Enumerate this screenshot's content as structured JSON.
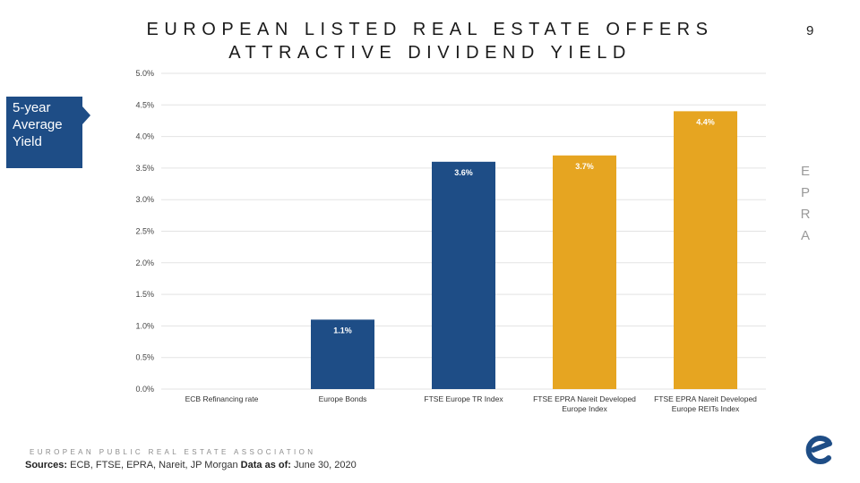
{
  "header": {
    "title_line1": "EUROPEAN LISTED REAL ESTATE OFFERS",
    "title_line2": "ATTRACTIVE DIVIDEND YIELD",
    "page_number": "9"
  },
  "callout": {
    "line1": "5-year",
    "line2": "Average",
    "line3": "Yield",
    "color": "#1e4d86"
  },
  "side_text": {
    "letters": [
      "E",
      "P",
      "R",
      "A"
    ]
  },
  "footer": {
    "association": "EUROPEAN PUBLIC REAL ESTATE ASSOCIATION",
    "sources_label": "Sources:",
    "sources_text": "ECB, FTSE, EPRA, Nareit, JP Morgan",
    "data_as_of_label": "Data as of:",
    "data_as_of_value": "June 30, 2020"
  },
  "logo": {
    "icon": "epra-e-logo-icon",
    "color": "#1e4d86"
  },
  "chart_data": {
    "type": "bar",
    "title": "5-year Average Yield",
    "xlabel": "",
    "ylabel": "",
    "ylim": [
      0,
      5
    ],
    "yticks": [
      "0.0%",
      "0.5%",
      "1.0%",
      "1.5%",
      "2.0%",
      "2.5%",
      "3.0%",
      "3.5%",
      "4.0%",
      "4.5%",
      "5.0%"
    ],
    "ytick_values": [
      0,
      0.5,
      1.0,
      1.5,
      2.0,
      2.5,
      3.0,
      3.5,
      4.0,
      4.5,
      5.0
    ],
    "grid": true,
    "categories": [
      [
        "ECB Refinancing rate"
      ],
      [
        "Europe Bonds"
      ],
      [
        "FTSE Europe TR Index"
      ],
      [
        "FTSE EPRA Nareit Developed",
        "Europe Index"
      ],
      [
        "FTSE EPRA Nareit Developed",
        "Europe REITs Index"
      ]
    ],
    "values": [
      0.0,
      1.1,
      3.6,
      3.7,
      4.4
    ],
    "labels": [
      "",
      "1.1%",
      "3.6%",
      "3.7%",
      "4.4%"
    ],
    "colors": [
      "#1e4d86",
      "#1e4d86",
      "#1e4d86",
      "#e6a521",
      "#e6a521"
    ]
  }
}
